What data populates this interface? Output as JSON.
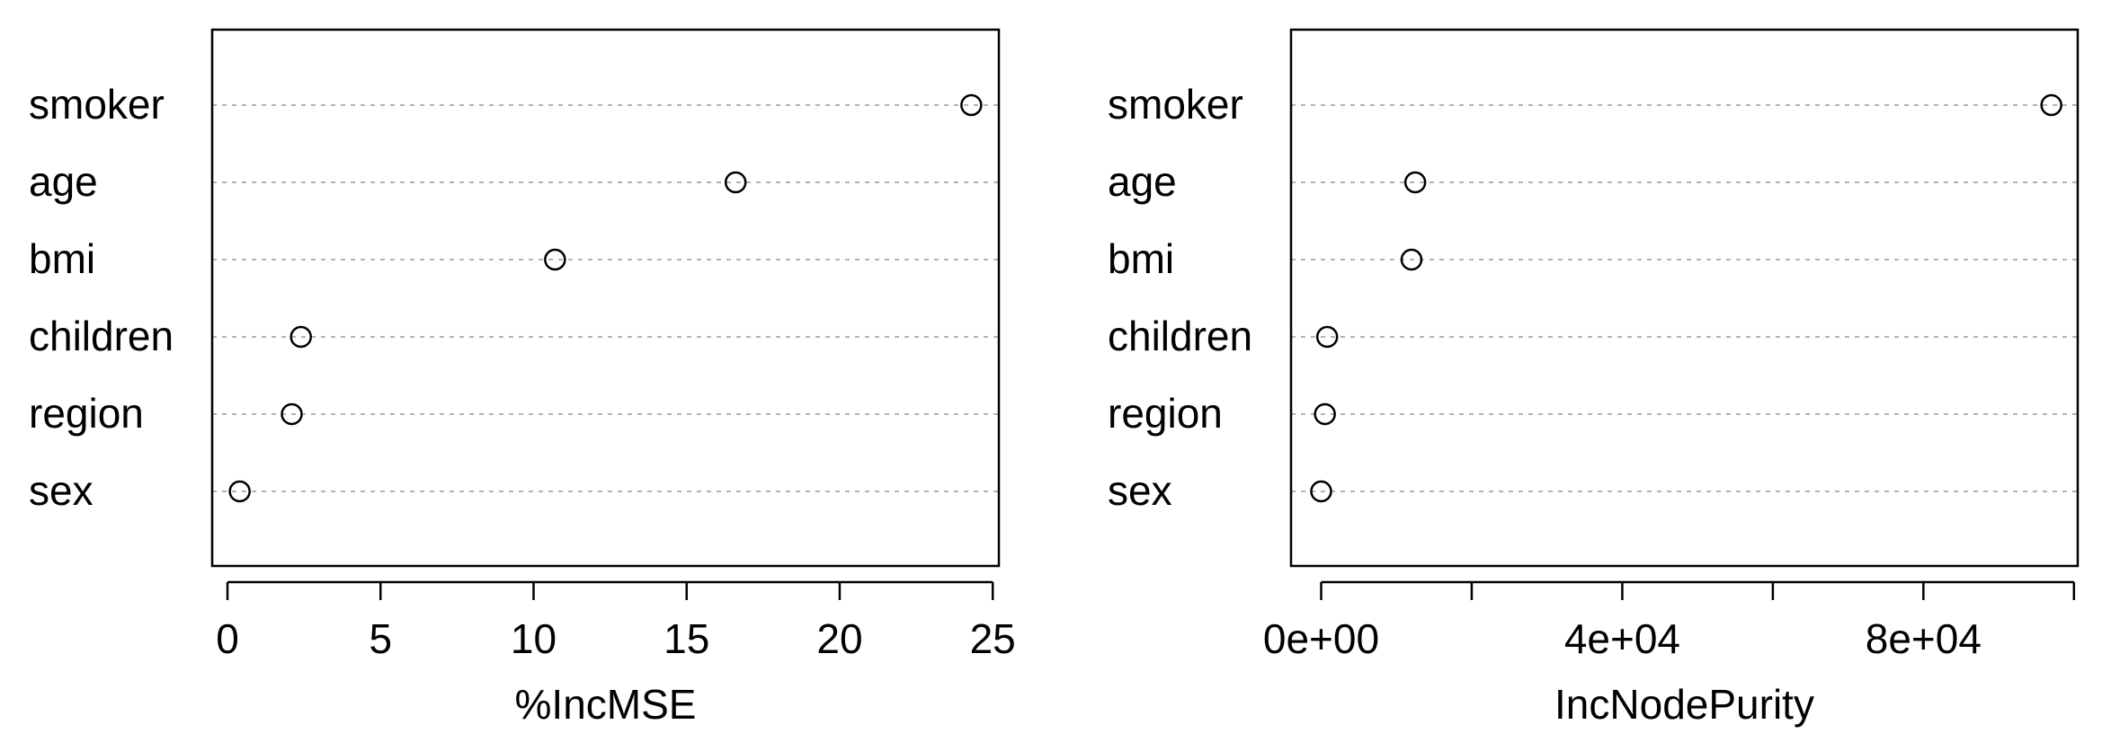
{
  "chart_data": [
    {
      "type": "dotchart",
      "xlabel": "%IncMSE",
      "categories": [
        "smoker",
        "age",
        "bmi",
        "children",
        "region",
        "sex"
      ],
      "values": [
        24.3,
        16.6,
        10.7,
        2.4,
        2.1,
        0.4
      ],
      "xlim": [
        -0.5,
        25.2
      ],
      "xticks": [
        0,
        5,
        10,
        15,
        20,
        25
      ],
      "xtick_labels": [
        "0",
        "5",
        "10",
        "15",
        "20",
        "25"
      ],
      "grid": "dotted horizontal lines",
      "legend": "none"
    },
    {
      "type": "dotchart",
      "xlabel": "IncNodePurity",
      "categories": [
        "smoker",
        "age",
        "bmi",
        "children",
        "region",
        "sex"
      ],
      "values": [
        97000,
        12500,
        12000,
        800,
        500,
        0
      ],
      "xlim": [
        -4000,
        100500
      ],
      "xticks": [
        0,
        20000,
        40000,
        60000,
        80000,
        100000
      ],
      "xtick_labels": [
        "0e+00",
        "",
        "4e+04",
        "",
        "8e+04",
        ""
      ],
      "grid": "dotted horizontal lines",
      "legend": "none"
    }
  ]
}
